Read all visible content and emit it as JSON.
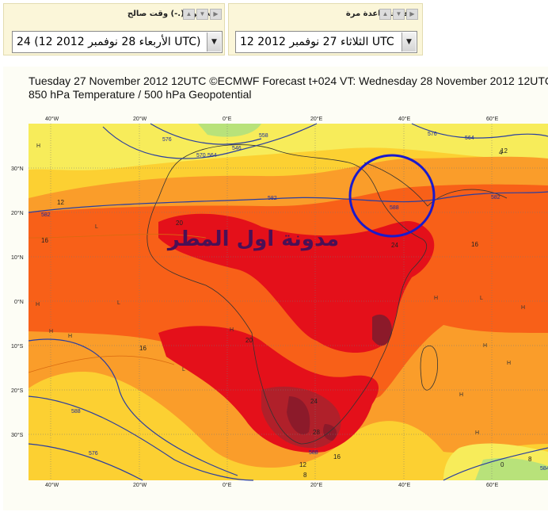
{
  "controls": {
    "step": {
      "label": "(الخطوة (.-) وقت صالح",
      "selected": "24 (12 2012 الأربعاء 28 نوفمبر UTC)",
      "arrows": [
        "▲",
        "▼",
        "▶"
      ]
    },
    "run": {
      "label": "توقعات قاعدة مرة",
      "selected": "12 2012 الثلاثاء 27 نوفمبر UTC",
      "arrows": [
        "▲",
        "▼",
        "▶"
      ]
    }
  },
  "map": {
    "title_line1": "Tuesday 27 November 2012 12UTC ©ECMWF Forecast t+024 VT: Wednesday 28 November 2012 12UTC",
    "title_line2": "850 hPa Temperature / 500 hPa Geopotential",
    "watermark": "مدونة اول المطر",
    "lon_labels": [
      "40°W",
      "20°W",
      "0°E",
      "20°E",
      "40°E",
      "60°E"
    ],
    "lat_labels": [
      "30°N",
      "20°N",
      "10°N",
      "0°N",
      "10°S",
      "20°S",
      "30°S"
    ],
    "isotherm_labels": [
      "16",
      "20",
      "24",
      "12",
      "16",
      "20",
      "24",
      "28",
      "16",
      "12",
      "8",
      "16",
      "12",
      "8",
      "4",
      "0"
    ],
    "geopotential_labels": [
      "576",
      "546",
      "558",
      "582",
      "582",
      "588",
      "582",
      "576",
      "570",
      "564",
      "588",
      "576",
      "588",
      "584",
      "564"
    ],
    "highlight_circle_color": "#1a1acc",
    "colors": {
      "very_warm": "#8c1a2a",
      "hot": "#e4101a",
      "warm": "#f86018",
      "mild": "#fa9d2a",
      "cool": "#fcd032",
      "cold": "#f7ec5a",
      "colder": "#b8e27a",
      "contour": "#2a3ea0"
    }
  }
}
